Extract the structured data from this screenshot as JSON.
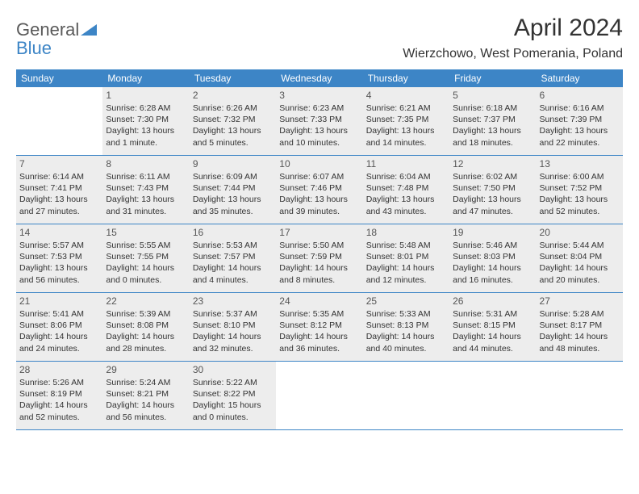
{
  "brand": {
    "part1": "General",
    "part2": "Blue"
  },
  "title": "April 2024",
  "location": "Wierzchowo, West Pomerania, Poland",
  "colors": {
    "header_bg": "#3d85c6",
    "shaded_bg": "#ededed",
    "text": "#333333",
    "logo_gray": "#5a5a5a",
    "logo_blue": "#3d85c6"
  },
  "weekdays": [
    "Sunday",
    "Monday",
    "Tuesday",
    "Wednesday",
    "Thursday",
    "Friday",
    "Saturday"
  ],
  "weeks": [
    [
      {
        "day": "",
        "shaded": false,
        "lines": []
      },
      {
        "day": "1",
        "shaded": true,
        "lines": [
          "Sunrise: 6:28 AM",
          "Sunset: 7:30 PM",
          "Daylight: 13 hours",
          "and 1 minute."
        ]
      },
      {
        "day": "2",
        "shaded": true,
        "lines": [
          "Sunrise: 6:26 AM",
          "Sunset: 7:32 PM",
          "Daylight: 13 hours",
          "and 5 minutes."
        ]
      },
      {
        "day": "3",
        "shaded": true,
        "lines": [
          "Sunrise: 6:23 AM",
          "Sunset: 7:33 PM",
          "Daylight: 13 hours",
          "and 10 minutes."
        ]
      },
      {
        "day": "4",
        "shaded": true,
        "lines": [
          "Sunrise: 6:21 AM",
          "Sunset: 7:35 PM",
          "Daylight: 13 hours",
          "and 14 minutes."
        ]
      },
      {
        "day": "5",
        "shaded": true,
        "lines": [
          "Sunrise: 6:18 AM",
          "Sunset: 7:37 PM",
          "Daylight: 13 hours",
          "and 18 minutes."
        ]
      },
      {
        "day": "6",
        "shaded": true,
        "lines": [
          "Sunrise: 6:16 AM",
          "Sunset: 7:39 PM",
          "Daylight: 13 hours",
          "and 22 minutes."
        ]
      }
    ],
    [
      {
        "day": "7",
        "shaded": true,
        "lines": [
          "Sunrise: 6:14 AM",
          "Sunset: 7:41 PM",
          "Daylight: 13 hours",
          "and 27 minutes."
        ]
      },
      {
        "day": "8",
        "shaded": true,
        "lines": [
          "Sunrise: 6:11 AM",
          "Sunset: 7:43 PM",
          "Daylight: 13 hours",
          "and 31 minutes."
        ]
      },
      {
        "day": "9",
        "shaded": true,
        "lines": [
          "Sunrise: 6:09 AM",
          "Sunset: 7:44 PM",
          "Daylight: 13 hours",
          "and 35 minutes."
        ]
      },
      {
        "day": "10",
        "shaded": true,
        "lines": [
          "Sunrise: 6:07 AM",
          "Sunset: 7:46 PM",
          "Daylight: 13 hours",
          "and 39 minutes."
        ]
      },
      {
        "day": "11",
        "shaded": true,
        "lines": [
          "Sunrise: 6:04 AM",
          "Sunset: 7:48 PM",
          "Daylight: 13 hours",
          "and 43 minutes."
        ]
      },
      {
        "day": "12",
        "shaded": true,
        "lines": [
          "Sunrise: 6:02 AM",
          "Sunset: 7:50 PM",
          "Daylight: 13 hours",
          "and 47 minutes."
        ]
      },
      {
        "day": "13",
        "shaded": true,
        "lines": [
          "Sunrise: 6:00 AM",
          "Sunset: 7:52 PM",
          "Daylight: 13 hours",
          "and 52 minutes."
        ]
      }
    ],
    [
      {
        "day": "14",
        "shaded": true,
        "lines": [
          "Sunrise: 5:57 AM",
          "Sunset: 7:53 PM",
          "Daylight: 13 hours",
          "and 56 minutes."
        ]
      },
      {
        "day": "15",
        "shaded": true,
        "lines": [
          "Sunrise: 5:55 AM",
          "Sunset: 7:55 PM",
          "Daylight: 14 hours",
          "and 0 minutes."
        ]
      },
      {
        "day": "16",
        "shaded": true,
        "lines": [
          "Sunrise: 5:53 AM",
          "Sunset: 7:57 PM",
          "Daylight: 14 hours",
          "and 4 minutes."
        ]
      },
      {
        "day": "17",
        "shaded": true,
        "lines": [
          "Sunrise: 5:50 AM",
          "Sunset: 7:59 PM",
          "Daylight: 14 hours",
          "and 8 minutes."
        ]
      },
      {
        "day": "18",
        "shaded": true,
        "lines": [
          "Sunrise: 5:48 AM",
          "Sunset: 8:01 PM",
          "Daylight: 14 hours",
          "and 12 minutes."
        ]
      },
      {
        "day": "19",
        "shaded": true,
        "lines": [
          "Sunrise: 5:46 AM",
          "Sunset: 8:03 PM",
          "Daylight: 14 hours",
          "and 16 minutes."
        ]
      },
      {
        "day": "20",
        "shaded": true,
        "lines": [
          "Sunrise: 5:44 AM",
          "Sunset: 8:04 PM",
          "Daylight: 14 hours",
          "and 20 minutes."
        ]
      }
    ],
    [
      {
        "day": "21",
        "shaded": true,
        "lines": [
          "Sunrise: 5:41 AM",
          "Sunset: 8:06 PM",
          "Daylight: 14 hours",
          "and 24 minutes."
        ]
      },
      {
        "day": "22",
        "shaded": true,
        "lines": [
          "Sunrise: 5:39 AM",
          "Sunset: 8:08 PM",
          "Daylight: 14 hours",
          "and 28 minutes."
        ]
      },
      {
        "day": "23",
        "shaded": true,
        "lines": [
          "Sunrise: 5:37 AM",
          "Sunset: 8:10 PM",
          "Daylight: 14 hours",
          "and 32 minutes."
        ]
      },
      {
        "day": "24",
        "shaded": true,
        "lines": [
          "Sunrise: 5:35 AM",
          "Sunset: 8:12 PM",
          "Daylight: 14 hours",
          "and 36 minutes."
        ]
      },
      {
        "day": "25",
        "shaded": true,
        "lines": [
          "Sunrise: 5:33 AM",
          "Sunset: 8:13 PM",
          "Daylight: 14 hours",
          "and 40 minutes."
        ]
      },
      {
        "day": "26",
        "shaded": true,
        "lines": [
          "Sunrise: 5:31 AM",
          "Sunset: 8:15 PM",
          "Daylight: 14 hours",
          "and 44 minutes."
        ]
      },
      {
        "day": "27",
        "shaded": true,
        "lines": [
          "Sunrise: 5:28 AM",
          "Sunset: 8:17 PM",
          "Daylight: 14 hours",
          "and 48 minutes."
        ]
      }
    ],
    [
      {
        "day": "28",
        "shaded": true,
        "lines": [
          "Sunrise: 5:26 AM",
          "Sunset: 8:19 PM",
          "Daylight: 14 hours",
          "and 52 minutes."
        ]
      },
      {
        "day": "29",
        "shaded": true,
        "lines": [
          "Sunrise: 5:24 AM",
          "Sunset: 8:21 PM",
          "Daylight: 14 hours",
          "and 56 minutes."
        ]
      },
      {
        "day": "30",
        "shaded": true,
        "lines": [
          "Sunrise: 5:22 AM",
          "Sunset: 8:22 PM",
          "Daylight: 15 hours",
          "and 0 minutes."
        ]
      },
      {
        "day": "",
        "shaded": false,
        "lines": []
      },
      {
        "day": "",
        "shaded": false,
        "lines": []
      },
      {
        "day": "",
        "shaded": false,
        "lines": []
      },
      {
        "day": "",
        "shaded": false,
        "lines": []
      }
    ]
  ]
}
